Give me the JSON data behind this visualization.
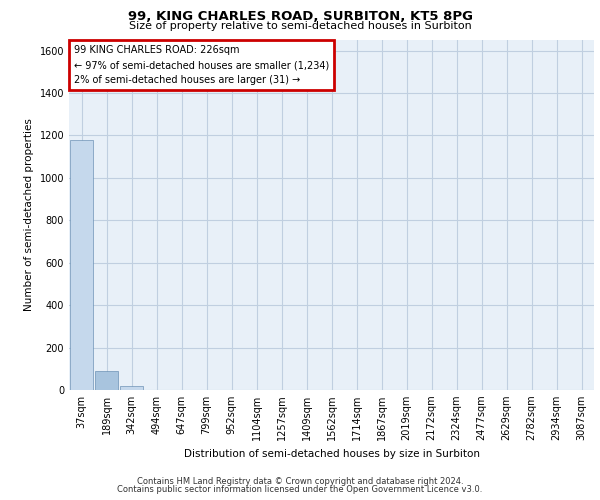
{
  "title_line1": "99, KING CHARLES ROAD, SURBITON, KT5 8PG",
  "title_line2": "Size of property relative to semi-detached houses in Surbiton",
  "xlabel": "Distribution of semi-detached houses by size in Surbiton",
  "ylabel": "Number of semi-detached properties",
  "footer_line1": "Contains HM Land Registry data © Crown copyright and database right 2024.",
  "footer_line2": "Contains public sector information licensed under the Open Government Licence v3.0.",
  "bar_labels": [
    "37sqm",
    "189sqm",
    "342sqm",
    "494sqm",
    "647sqm",
    "799sqm",
    "952sqm",
    "1104sqm",
    "1257sqm",
    "1409sqm",
    "1562sqm",
    "1714sqm",
    "1867sqm",
    "2019sqm",
    "2172sqm",
    "2324sqm",
    "2477sqm",
    "2629sqm",
    "2782sqm",
    "2934sqm",
    "3087sqm"
  ],
  "bar_values": [
    1180,
    90,
    20,
    0,
    0,
    0,
    0,
    0,
    0,
    0,
    0,
    0,
    0,
    0,
    0,
    0,
    0,
    0,
    0,
    0,
    0
  ],
  "bar_color_normal": "#c5d8ec",
  "bar_color_highlight": "#a8c4de",
  "highlight_bar_index": 1,
  "annotation_text_line1": "99 KING CHARLES ROAD: 226sqm",
  "annotation_text_line2": "← 97% of semi-detached houses are smaller (1,234)",
  "annotation_text_line3": "2% of semi-detached houses are larger (31) →",
  "annotation_box_color": "#cc0000",
  "ylim_max": 1650,
  "yticks": [
    0,
    200,
    400,
    600,
    800,
    1000,
    1200,
    1400,
    1600
  ],
  "plot_bg_color": "#e8f0f8",
  "grid_color": "#c0cfe0",
  "bar_edge_color": "#5580a8",
  "fig_bg_color": "#ffffff",
  "title1_fontsize": 9.5,
  "title2_fontsize": 8.0,
  "ylabel_fontsize": 7.5,
  "xlabel_fontsize": 7.5,
  "tick_fontsize": 7.0,
  "annotation_fontsize": 7.0,
  "footer_fontsize": 6.0
}
